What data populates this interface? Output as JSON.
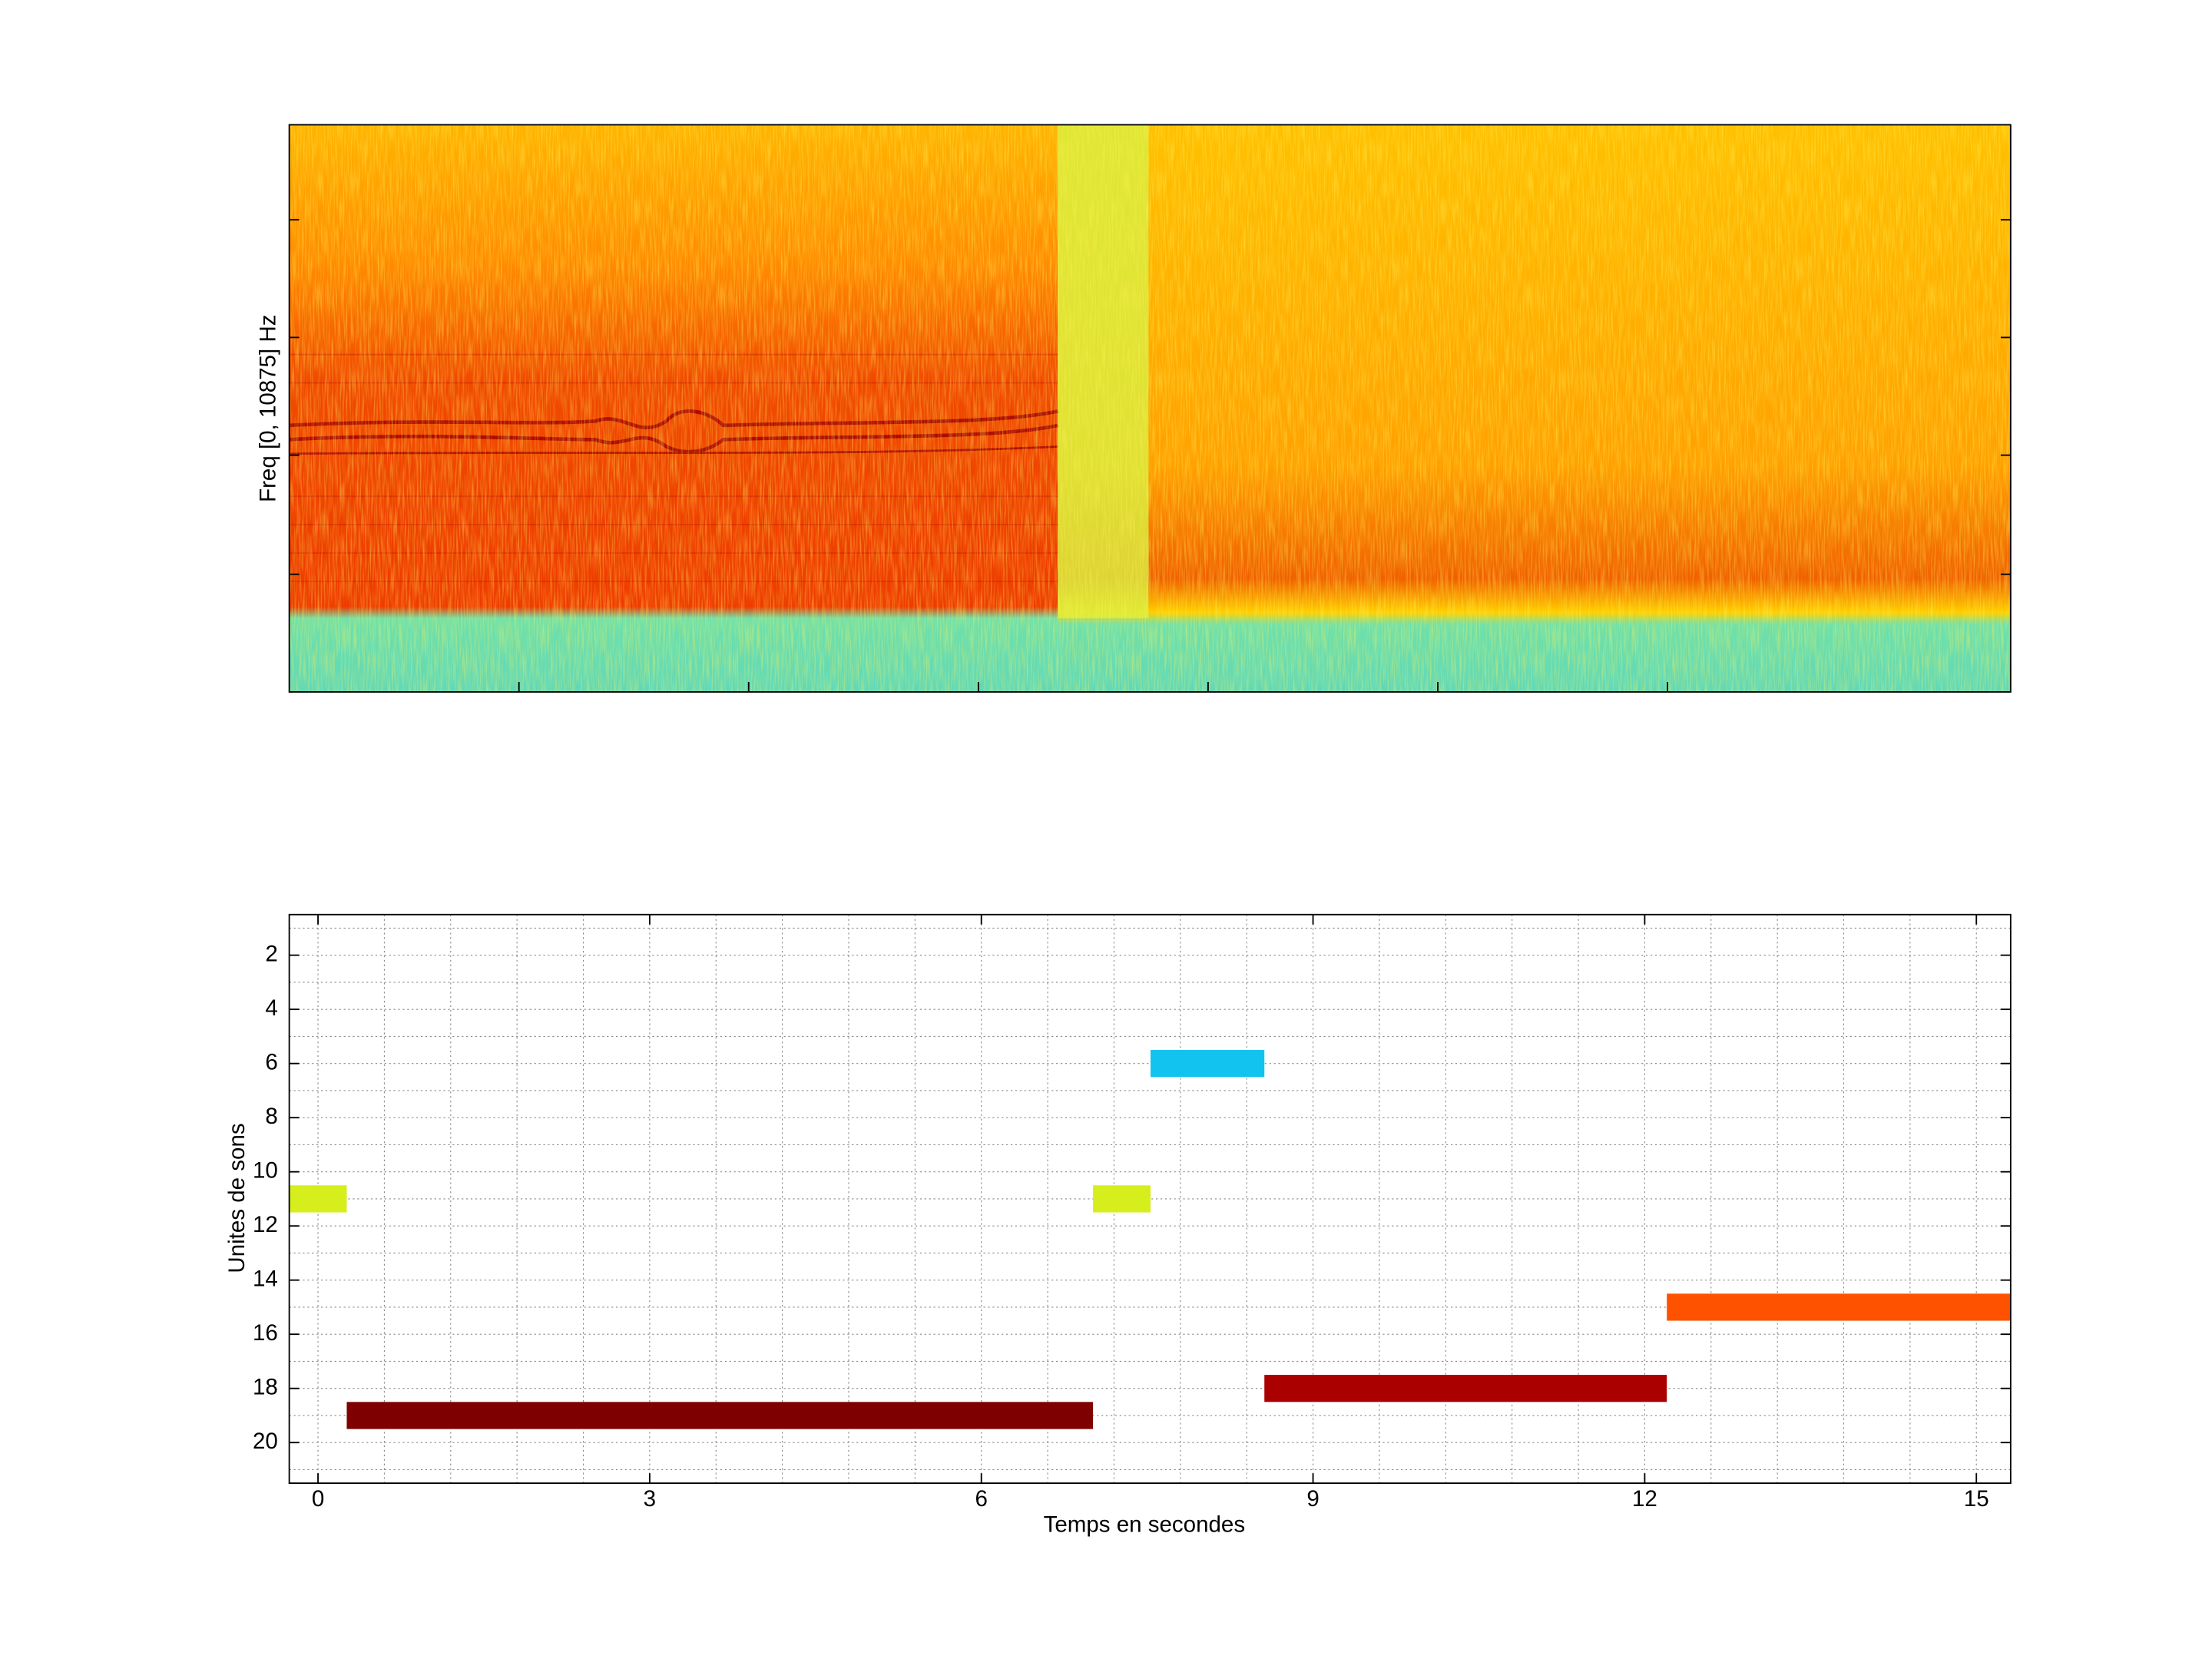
{
  "chart_data": [
    {
      "type": "spectrogram",
      "ylabel": "Freq [0, 10875] Hz"
    },
    {
      "type": "timeline",
      "xlabel": "Temps en secondes",
      "ylabel": "Unites de sons",
      "xlim": [
        -0.26,
        15.31
      ],
      "ylim": [
        0.5,
        21.5
      ],
      "yreverse": true,
      "xticks": [
        0,
        3,
        6,
        9,
        12,
        15
      ],
      "yticks": [
        2,
        4,
        6,
        8,
        10,
        12,
        14,
        16,
        18,
        20
      ],
      "xminorticks": [
        0,
        0.6,
        1.2,
        1.8,
        2.4,
        3,
        3.6,
        4.2,
        4.8,
        5.4,
        6,
        6.6,
        7.2,
        7.8,
        8.4,
        9,
        9.6,
        10.2,
        10.8,
        11.4,
        12,
        12.6,
        13.2,
        13.8,
        14.4,
        15
      ],
      "yminorticks": [
        1,
        2,
        3,
        4,
        5,
        6,
        7,
        8,
        9,
        10,
        11,
        12,
        13,
        14,
        15,
        16,
        17,
        18,
        19,
        20,
        21
      ],
      "grid": true,
      "bars": [
        {
          "unit": 11,
          "start": -0.26,
          "end": 0.26,
          "color": "#d5ee1c"
        },
        {
          "unit": 19,
          "start": 0.26,
          "end": 7.01,
          "color": "#7f0000"
        },
        {
          "unit": 11,
          "start": 7.01,
          "end": 7.53,
          "color": "#d5ee1c"
        },
        {
          "unit": 6,
          "start": 7.53,
          "end": 8.56,
          "color": "#12c3f0"
        },
        {
          "unit": 18,
          "start": 8.56,
          "end": 12.2,
          "color": "#aa0000"
        },
        {
          "unit": 15,
          "start": 12.2,
          "end": 15.31,
          "color": "#ff5200"
        }
      ]
    }
  ]
}
